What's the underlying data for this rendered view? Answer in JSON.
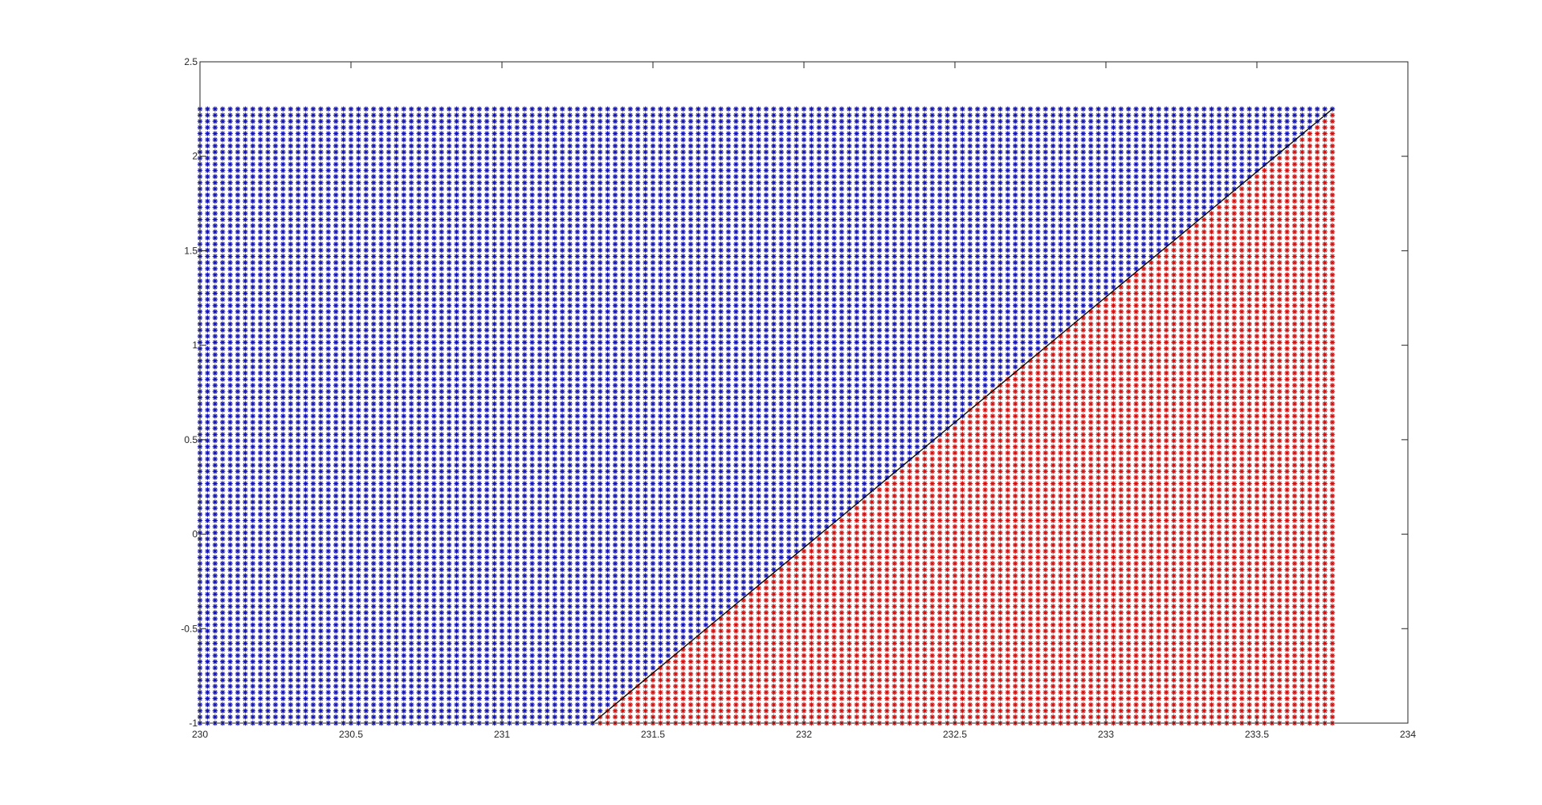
{
  "chart_data": {
    "type": "scatter",
    "title": "",
    "xlabel": "",
    "ylabel": "",
    "xlim": [
      230,
      234
    ],
    "ylim": [
      -1,
      2.5
    ],
    "xticks": [
      230,
      230.5,
      231,
      231.5,
      232,
      232.5,
      233,
      233.5,
      234
    ],
    "xtick_labels": [
      "230",
      "230.5",
      "231",
      "231.5",
      "232",
      "232.5",
      "233",
      "233.5",
      "234"
    ],
    "yticks": [
      -1,
      -0.5,
      0,
      0.5,
      1,
      1.5,
      2,
      2.5
    ],
    "ytick_labels": [
      "-1",
      "-0.5",
      "0",
      "0.5",
      "1",
      "1.5",
      "2",
      "2.5"
    ],
    "grid": false,
    "legend": "none",
    "marker": "asterisk",
    "grid_points": {
      "x_start": 230,
      "x_end": 233.75,
      "x_step": 0.025,
      "y_start": -1,
      "y_end": 2.25,
      "y_step": 0.0325
    },
    "series": [
      {
        "color": "#1515b0",
        "rule": "points with y above the boundary line"
      },
      {
        "color": "#cc1111",
        "rule": "points with y below the boundary line"
      }
    ],
    "boundary_line": {
      "color": "#000000",
      "points": [
        [
          231.3,
          -1
        ],
        [
          233.75,
          2.25
        ]
      ]
    }
  }
}
